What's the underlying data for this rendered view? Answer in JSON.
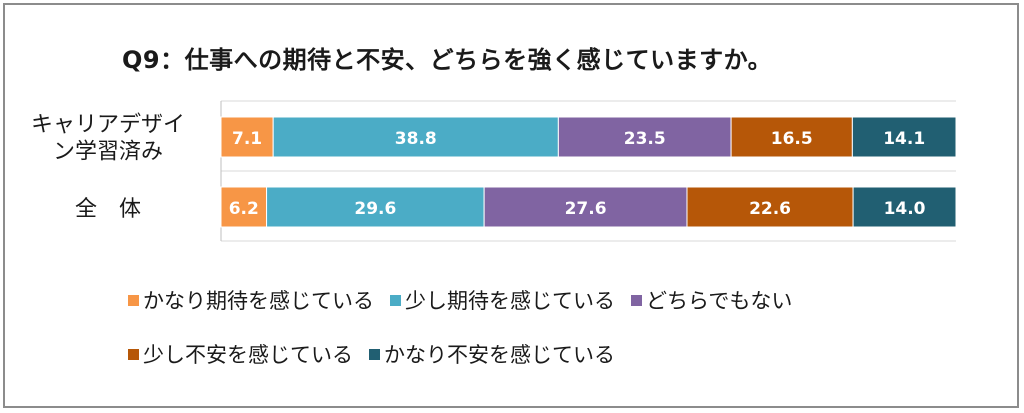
{
  "chart_data": {
    "type": "bar",
    "orientation": "horizontal",
    "stacked": true,
    "title": "Q9：仕事への期待と不安、どちらを強く感じていますか。",
    "categories": [
      "キャリアデザイン学習済み",
      "全　体"
    ],
    "category_label_lines": [
      [
        "キャリアデザイ",
        "ン学習済み"
      ],
      [
        "全　体"
      ]
    ],
    "series": [
      {
        "name": "かなり期待を感じている",
        "color": "#f79646",
        "values": [
          7.1,
          6.2
        ]
      },
      {
        "name": "少し期待を感じている",
        "color": "#4bacc6",
        "values": [
          38.8,
          29.6
        ]
      },
      {
        "name": "どちらでもない",
        "color": "#8064a2",
        "values": [
          23.5,
          27.6
        ]
      },
      {
        "name": "少し不安を感じている",
        "color": "#b65708",
        "values": [
          16.5,
          22.6
        ]
      },
      {
        "name": "かなり不安を感じている",
        "color": "#215f72",
        "values": [
          14.1,
          14.0
        ]
      }
    ],
    "xlim": [
      0,
      100
    ],
    "legend_position": "bottom",
    "grid": false
  }
}
